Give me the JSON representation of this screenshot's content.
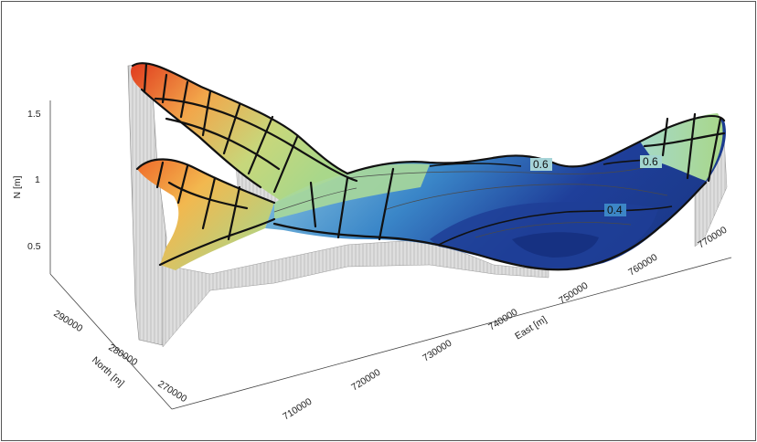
{
  "chart_data": {
    "type": "surface-3d",
    "zlabel": "N [m]",
    "xlabel": "East [m]",
    "ylabel": "North [m]",
    "z_ticks": [
      "0.5",
      "1",
      "1.5"
    ],
    "x_ticks": [
      "710000",
      "720000",
      "730000",
      "740000",
      "750000",
      "760000",
      "770000"
    ],
    "y_ticks": [
      "290000",
      "280000",
      "270000"
    ],
    "zlim": [
      0.3,
      1.7
    ],
    "contour_labels": [
      {
        "text": "0.6",
        "level": 0.6
      },
      {
        "text": "0.6",
        "level": 0.6
      },
      {
        "text": "0.4",
        "level": 0.4
      }
    ],
    "colormap": [
      "#1f3f9a",
      "#3a86c8",
      "#9fd6e8",
      "#a9d78a",
      "#f2a64a",
      "#e03a1e"
    ]
  }
}
